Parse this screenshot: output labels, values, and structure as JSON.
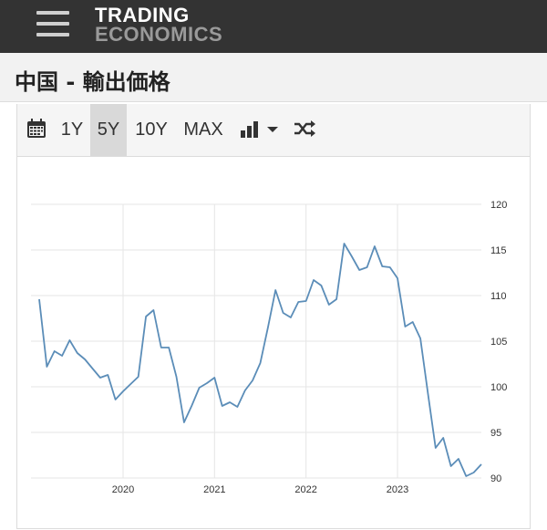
{
  "header": {
    "logo_line1": "TRADING",
    "logo_line2": "ECONOMICS"
  },
  "page": {
    "title": "中国 - 輸出価格"
  },
  "toolbar": {
    "ranges": [
      "1Y",
      "5Y",
      "10Y",
      "MAX"
    ],
    "active_range": "5Y"
  },
  "colors": {
    "line": "#5b8db8",
    "topbar": "#333333",
    "active_tab": "#d9d9d9"
  },
  "chart_data": {
    "type": "line",
    "ylim": [
      90,
      120
    ],
    "yticks": [
      90,
      95,
      100,
      105,
      110,
      115,
      120
    ],
    "xticks": [
      "2020",
      "2021",
      "2022",
      "2023"
    ],
    "xlim": [
      "2019-02",
      "2023-12"
    ],
    "grid": true,
    "series": [
      {
        "x": [
          "2019-02",
          "2019-03",
          "2019-04",
          "2019-05",
          "2019-06",
          "2019-07",
          "2019-08",
          "2019-09",
          "2019-10",
          "2019-11",
          "2019-12",
          "2020-01",
          "2020-02",
          "2020-03",
          "2020-04",
          "2020-05",
          "2020-06",
          "2020-07",
          "2020-08",
          "2020-09",
          "2020-10",
          "2020-11",
          "2020-12",
          "2021-01",
          "2021-02",
          "2021-03",
          "2021-04",
          "2021-05",
          "2021-06",
          "2021-07",
          "2021-08",
          "2021-09",
          "2021-10",
          "2021-11",
          "2021-12",
          "2022-01",
          "2022-02",
          "2022-03",
          "2022-04",
          "2022-05",
          "2022-06",
          "2022-07",
          "2022-08",
          "2022-09",
          "2022-10",
          "2022-11",
          "2022-12",
          "2023-01",
          "2023-02",
          "2023-03",
          "2023-04",
          "2023-05",
          "2023-06",
          "2023-07",
          "2023-08",
          "2023-09",
          "2023-10",
          "2023-11",
          "2023-12"
        ],
        "values": [
          109.6,
          102.2,
          103.9,
          103.4,
          105.1,
          103.7,
          103.0,
          102.0,
          101.0,
          101.3,
          98.6,
          99.5,
          100.3,
          101.1,
          107.7,
          108.4,
          104.3,
          104.3,
          101.1,
          96.1,
          97.9,
          99.9,
          100.4,
          101.0,
          97.9,
          98.3,
          97.8,
          99.6,
          100.7,
          102.6,
          106.5,
          110.6,
          108.1,
          107.6,
          109.3,
          109.4,
          111.7,
          111.1,
          109.0,
          109.6,
          115.7,
          114.3,
          112.8,
          113.1,
          115.4,
          113.2,
          113.1,
          111.9,
          106.6,
          107.1,
          105.3,
          99.2,
          93.3,
          94.4,
          91.3,
          92.1,
          90.2,
          90.6,
          91.5
        ]
      }
    ]
  }
}
